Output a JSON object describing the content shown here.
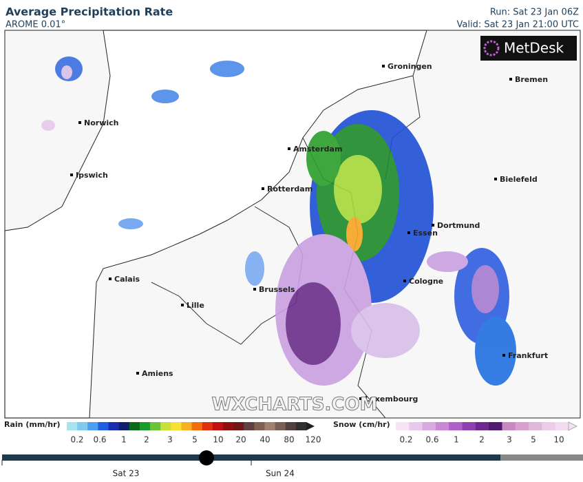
{
  "header": {
    "title": "Average Precipitation Rate",
    "model": "AROME 0.01°",
    "run": "Run: Sat 23 Jan 06Z",
    "valid": "Valid: Sat 23 Jan 21:00 UTC"
  },
  "logo": "MetDesk",
  "watermark": "WXCHARTS.COM",
  "cities": [
    "Groningen",
    "Bremen",
    "Norwich",
    "Amsterdam",
    "Ipswich",
    "Bielefeld",
    "Rotterdam",
    "Dortmund",
    "Essen",
    "Calais",
    "Brussels",
    "Cologne",
    "Lille",
    "Frankfurt",
    "Amiens",
    "Luxembourg"
  ],
  "legend": {
    "rain": {
      "label": "Rain (mm/hr)",
      "ticks": [
        "0.2",
        "0.6",
        "1",
        "2",
        "3",
        "5",
        "10",
        "20",
        "40",
        "80",
        "120"
      ]
    },
    "snow": {
      "label": "Snow (cm/hr)",
      "ticks": [
        "0.2",
        "0.6",
        "1",
        "2",
        "3",
        "5",
        "10"
      ]
    }
  },
  "timeline": {
    "labels": [
      "Sat 23",
      "Sun 24"
    ]
  }
}
